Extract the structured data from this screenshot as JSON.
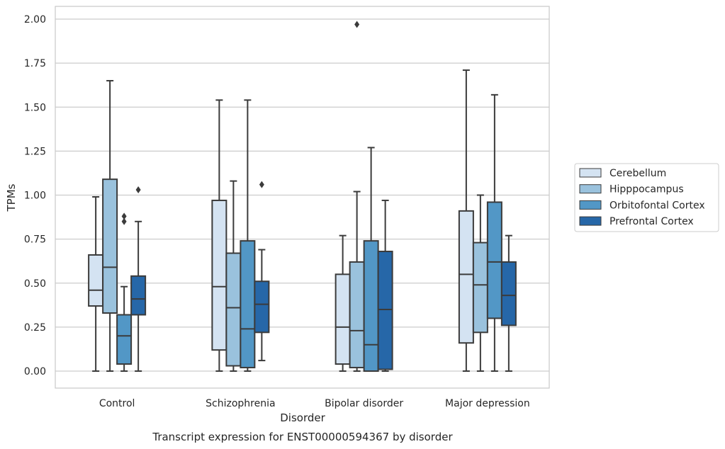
{
  "chart_data": {
    "type": "box",
    "caption": "Transcript expression for ENST00000594367 by disorder",
    "xlabel": "Disorder",
    "ylabel": "TPMs",
    "ylim": [
      -0.1,
      2.07
    ],
    "yticks": [
      0.0,
      0.25,
      0.5,
      0.75,
      1.0,
      1.25,
      1.5,
      1.75,
      2.0
    ],
    "ytick_labels": [
      "0.00",
      "0.25",
      "0.50",
      "0.75",
      "1.00",
      "1.25",
      "1.50",
      "1.75",
      "2.00"
    ],
    "grid": "horizontal",
    "legend_position": "right",
    "categories": [
      "Control",
      "Schizophrenia",
      "Bipolar disorder",
      "Major depression"
    ],
    "series": [
      {
        "name": "Cerebellum",
        "color": "#d4e3f2",
        "boxes": [
          {
            "whislo": 0.0,
            "q1": 0.37,
            "med": 0.46,
            "q3": 0.66,
            "whishi": 0.99,
            "fliers": []
          },
          {
            "whislo": 0.0,
            "q1": 0.12,
            "med": 0.48,
            "q3": 0.97,
            "whishi": 1.54,
            "fliers": []
          },
          {
            "whislo": 0.0,
            "q1": 0.04,
            "med": 0.25,
            "q3": 0.55,
            "whishi": 0.77,
            "fliers": []
          },
          {
            "whislo": 0.0,
            "q1": 0.16,
            "med": 0.55,
            "q3": 0.91,
            "whishi": 1.71,
            "fliers": []
          }
        ]
      },
      {
        "name": "Hipppocampus",
        "color": "#9ac2dd",
        "boxes": [
          {
            "whislo": 0.0,
            "q1": 0.33,
            "med": 0.59,
            "q3": 1.09,
            "whishi": 1.65,
            "fliers": []
          },
          {
            "whislo": 0.0,
            "q1": 0.03,
            "med": 0.36,
            "q3": 0.67,
            "whishi": 1.08,
            "fliers": []
          },
          {
            "whislo": 0.0,
            "q1": 0.02,
            "med": 0.23,
            "q3": 0.62,
            "whishi": 1.02,
            "fliers": [
              1.97
            ]
          },
          {
            "whislo": 0.0,
            "q1": 0.22,
            "med": 0.49,
            "q3": 0.73,
            "whishi": 1.0,
            "fliers": []
          }
        ]
      },
      {
        "name": "Orbitofontal Cortex",
        "color": "#5297c6",
        "boxes": [
          {
            "whislo": 0.0,
            "q1": 0.04,
            "med": 0.2,
            "q3": 0.32,
            "whishi": 0.48,
            "fliers": [
              0.85,
              0.88
            ]
          },
          {
            "whislo": 0.0,
            "q1": 0.02,
            "med": 0.24,
            "q3": 0.74,
            "whishi": 1.54,
            "fliers": []
          },
          {
            "whislo": 0.0,
            "q1": 0.0,
            "med": 0.15,
            "q3": 0.74,
            "whishi": 1.27,
            "fliers": []
          },
          {
            "whislo": 0.0,
            "q1": 0.3,
            "med": 0.62,
            "q3": 0.96,
            "whishi": 1.57,
            "fliers": []
          }
        ]
      },
      {
        "name": "Prefrontal Cortex",
        "color": "#2667a8",
        "boxes": [
          {
            "whislo": 0.0,
            "q1": 0.32,
            "med": 0.41,
            "q3": 0.54,
            "whishi": 0.85,
            "fliers": [
              1.03
            ]
          },
          {
            "whislo": 0.06,
            "q1": 0.22,
            "med": 0.38,
            "q3": 0.51,
            "whishi": 0.69,
            "fliers": [
              1.06
            ]
          },
          {
            "whislo": 0.0,
            "q1": 0.01,
            "med": 0.35,
            "q3": 0.68,
            "whishi": 0.97,
            "fliers": []
          },
          {
            "whislo": 0.0,
            "q1": 0.26,
            "med": 0.43,
            "q3": 0.62,
            "whishi": 0.77,
            "fliers": []
          }
        ]
      }
    ]
  }
}
